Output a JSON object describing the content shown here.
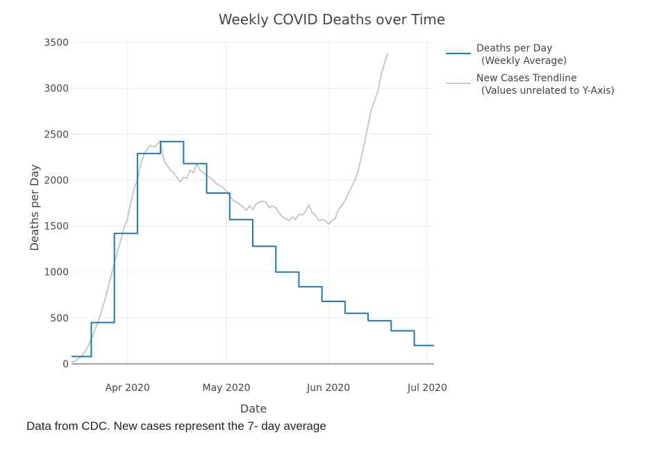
{
  "chart_data": {
    "type": "line",
    "title": "Weekly COVID Deaths over Time",
    "xlabel": "Date",
    "ylabel": "Deaths per Day",
    "ylim": [
      0,
      3500
    ],
    "yticks": [
      0,
      500,
      1000,
      1500,
      2000,
      2500,
      3000,
      3500
    ],
    "x_range_days": [
      0,
      110
    ],
    "xticks": [
      {
        "label": "Apr 2020",
        "day": 17
      },
      {
        "label": "May 2020",
        "day": 47
      },
      {
        "label": "Jun 2020",
        "day": 78
      },
      {
        "label": "Jul 2020",
        "day": 108
      }
    ],
    "x_day0": "2020-03-15",
    "grid": true,
    "legend": "top-right",
    "series": [
      {
        "name": "Deaths per Day",
        "legend_lines": [
          "Deaths per Day",
          "(Weekly Average)"
        ],
        "color": "#1f77b4",
        "step": true,
        "points": [
          [
            0,
            80
          ],
          [
            6,
            80
          ],
          [
            6,
            450
          ],
          [
            13,
            450
          ],
          [
            13,
            1420
          ],
          [
            20,
            1420
          ],
          [
            20,
            2290
          ],
          [
            27,
            2290
          ],
          [
            27,
            2420
          ],
          [
            34,
            2420
          ],
          [
            34,
            2180
          ],
          [
            41,
            2180
          ],
          [
            41,
            1860
          ],
          [
            48,
            1860
          ],
          [
            48,
            1570
          ],
          [
            55,
            1570
          ],
          [
            55,
            1280
          ],
          [
            62,
            1280
          ],
          [
            62,
            1000
          ],
          [
            69,
            1000
          ],
          [
            69,
            840
          ],
          [
            76,
            840
          ],
          [
            76,
            680
          ],
          [
            83,
            680
          ],
          [
            83,
            550
          ],
          [
            90,
            550
          ],
          [
            90,
            470
          ],
          [
            97,
            470
          ],
          [
            97,
            360
          ],
          [
            104,
            360
          ],
          [
            104,
            200
          ],
          [
            110,
            200
          ]
        ]
      },
      {
        "name": "New Cases Trendline",
        "legend_lines": [
          "New Cases Trendline",
          "(Values unrelated to Y-Axis)"
        ],
        "color": "#c8c8c8",
        "step": false,
        "points": [
          [
            0,
            20
          ],
          [
            1,
            30
          ],
          [
            2,
            55
          ],
          [
            3,
            80
          ],
          [
            4,
            130
          ],
          [
            5,
            190
          ],
          [
            6,
            270
          ],
          [
            7,
            360
          ],
          [
            8,
            450
          ],
          [
            9,
            560
          ],
          [
            10,
            680
          ],
          [
            11,
            820
          ],
          [
            12,
            960
          ],
          [
            13,
            1100
          ],
          [
            14,
            1230
          ],
          [
            15,
            1350
          ],
          [
            16,
            1490
          ],
          [
            17,
            1580
          ],
          [
            18,
            1760
          ],
          [
            19,
            1910
          ],
          [
            20,
            2000
          ],
          [
            21,
            2180
          ],
          [
            22,
            2280
          ],
          [
            23,
            2340
          ],
          [
            24,
            2380
          ],
          [
            25,
            2360
          ],
          [
            26,
            2390
          ],
          [
            27,
            2430
          ],
          [
            28,
            2220
          ],
          [
            29,
            2160
          ],
          [
            30,
            2110
          ],
          [
            31,
            2080
          ],
          [
            32,
            2030
          ],
          [
            33,
            1980
          ],
          [
            34,
            2030
          ],
          [
            35,
            2020
          ],
          [
            36,
            2110
          ],
          [
            37,
            2080
          ],
          [
            38,
            2180
          ],
          [
            39,
            2110
          ],
          [
            40,
            2080
          ],
          [
            41,
            2050
          ],
          [
            42,
            2030
          ],
          [
            43,
            2000
          ],
          [
            44,
            1960
          ],
          [
            45,
            1940
          ],
          [
            46,
            1920
          ],
          [
            47,
            1880
          ],
          [
            48,
            1830
          ],
          [
            49,
            1780
          ],
          [
            50,
            1760
          ],
          [
            51,
            1740
          ],
          [
            52,
            1710
          ],
          [
            53,
            1670
          ],
          [
            54,
            1720
          ],
          [
            55,
            1680
          ],
          [
            56,
            1740
          ],
          [
            57,
            1760
          ],
          [
            58,
            1770
          ],
          [
            59,
            1760
          ],
          [
            60,
            1700
          ],
          [
            61,
            1720
          ],
          [
            62,
            1700
          ],
          [
            63,
            1640
          ],
          [
            64,
            1600
          ],
          [
            65,
            1580
          ],
          [
            66,
            1560
          ],
          [
            67,
            1600
          ],
          [
            68,
            1570
          ],
          [
            69,
            1630
          ],
          [
            70,
            1620
          ],
          [
            71,
            1660
          ],
          [
            72,
            1730
          ],
          [
            73,
            1650
          ],
          [
            74,
            1620
          ],
          [
            75,
            1560
          ],
          [
            76,
            1570
          ],
          [
            77,
            1560
          ],
          [
            78,
            1520
          ],
          [
            79,
            1560
          ],
          [
            80,
            1580
          ],
          [
            81,
            1680
          ],
          [
            82,
            1720
          ],
          [
            83,
            1780
          ],
          [
            84,
            1850
          ],
          [
            85,
            1930
          ],
          [
            86,
            2000
          ],
          [
            87,
            2100
          ],
          [
            88,
            2260
          ],
          [
            89,
            2420
          ],
          [
            90,
            2600
          ],
          [
            91,
            2780
          ],
          [
            92,
            2870
          ],
          [
            93,
            2970
          ],
          [
            94,
            3150
          ],
          [
            95,
            3280
          ],
          [
            96,
            3380
          ]
        ]
      }
    ]
  },
  "caption": "Data from CDC. New cases represent the 7- day average"
}
